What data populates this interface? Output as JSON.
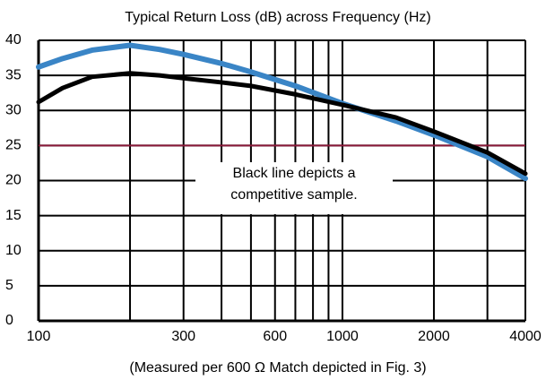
{
  "chart_data": {
    "type": "line",
    "title": "Typical Return Loss (dB) across Frequency (Hz)",
    "x_label": "(Measured per 600 Ω Match depicted in Fig. 3)",
    "annotation": [
      "Black line depicts a",
      "competitive sample."
    ],
    "log_x": true,
    "grid": true,
    "xlim": [
      100,
      4000
    ],
    "xticks": [
      100,
      300,
      600,
      1000,
      2000,
      4000
    ],
    "minor_xticks": [
      200,
      400,
      500,
      700,
      800,
      900,
      3000
    ],
    "ylim": [
      0,
      40
    ],
    "yticks": [
      0,
      5,
      10,
      15,
      20,
      25,
      30,
      35,
      40
    ],
    "reference_line": {
      "value": 25,
      "color": "#8b1a3a"
    },
    "x": [
      100,
      120,
      150,
      200,
      250,
      300,
      400,
      500,
      700,
      1000,
      1500,
      2000,
      3000,
      4000
    ],
    "series": [
      {
        "color": "#3a85c6",
        "values": [
          36.2,
          37.4,
          38.6,
          39.3,
          38.7,
          38.0,
          36.7,
          35.5,
          33.5,
          31.0,
          28.5,
          26.5,
          23.4,
          20.3
        ]
      },
      {
        "color": "#000000",
        "values": [
          31.2,
          33.2,
          34.8,
          35.3,
          35.0,
          34.6,
          34.0,
          33.5,
          32.3,
          30.8,
          29.0,
          27.0,
          24.0,
          21.0
        ]
      }
    ]
  }
}
